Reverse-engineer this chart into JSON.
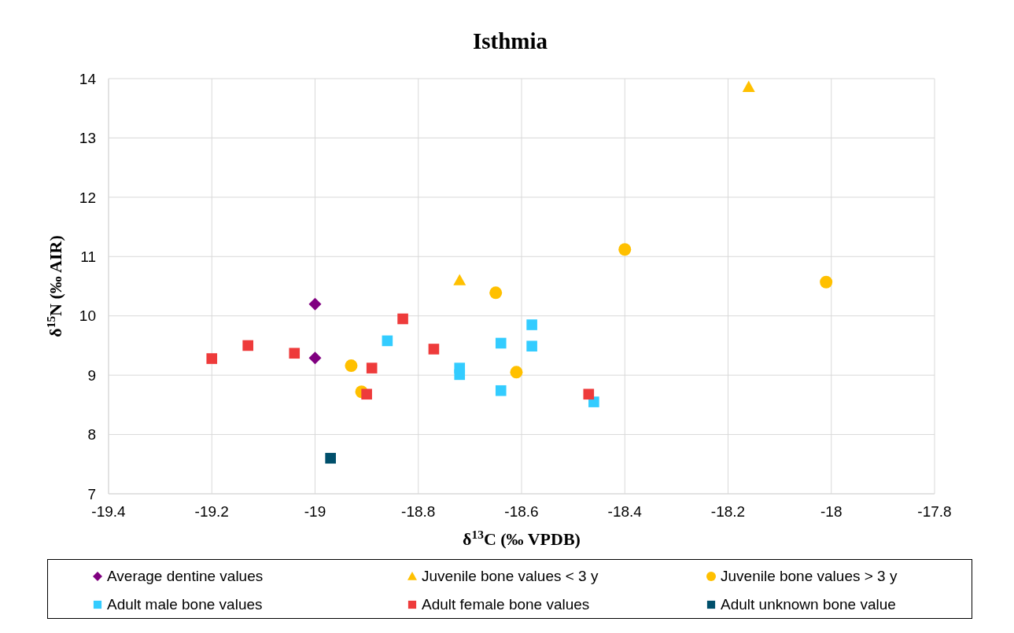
{
  "chart_data": {
    "type": "scatter",
    "title": "Isthmia",
    "xlabel": "δ$^{13}$C (‰ VPDB)",
    "ylabel": "δ$^{15}$N (‰ AIR)",
    "xlim": [
      -19.4,
      -17.8
    ],
    "xticks": [
      -19.4,
      -19.2,
      -19,
      -18.8,
      -18.6,
      -18.4,
      -18.2,
      -18,
      -17.8
    ],
    "ylim": [
      7,
      14
    ],
    "yticks": [
      7,
      8,
      9,
      10,
      11,
      12,
      13,
      14
    ],
    "grid": true,
    "legend": "bottom",
    "series": [
      {
        "name": "Average dentine values",
        "color": "#800080",
        "marker": "diamond",
        "x": [
          -19.0,
          -19.0
        ],
        "values": [
          10.2,
          9.29
        ]
      },
      {
        "name": "Juvenile bone values < 3 y",
        "color": "#ffc000",
        "marker": "triangle",
        "x": [
          -18.16,
          -18.72
        ],
        "values": [
          13.86,
          10.6
        ]
      },
      {
        "name": "Juvenile bone values > 3 y",
        "color": "#ffc000",
        "marker": "circle",
        "x": [
          -18.93,
          -18.91,
          -18.65,
          -18.61,
          -18.4,
          -18.01
        ],
        "values": [
          9.16,
          8.72,
          10.39,
          9.05,
          11.12,
          10.57
        ]
      },
      {
        "name": "Adult male bone values",
        "color": "#33ccff",
        "marker": "square",
        "x": [
          -18.86,
          -18.72,
          -18.72,
          -18.64,
          -18.64,
          -18.58,
          -18.58,
          -18.46
        ],
        "values": [
          9.58,
          9.12,
          9.01,
          9.54,
          8.74,
          9.85,
          9.49,
          8.55
        ]
      },
      {
        "name": "Adult female bone values",
        "color": "#ee3b3b",
        "marker": "square",
        "x": [
          -19.2,
          -19.13,
          -19.04,
          -18.89,
          -18.9,
          -18.83,
          -18.77,
          -18.47
        ],
        "values": [
          9.28,
          9.5,
          9.37,
          9.12,
          8.68,
          9.95,
          9.44,
          8.68
        ]
      },
      {
        "name": "Adult unknown bone value",
        "color": "#004f6b",
        "marker": "square",
        "x": [
          -18.97
        ],
        "values": [
          7.6
        ]
      }
    ]
  }
}
